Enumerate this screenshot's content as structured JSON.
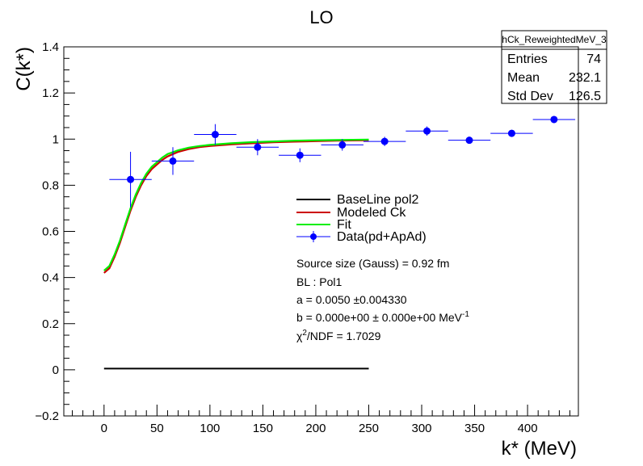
{
  "chart_data": {
    "type": "scatter",
    "title": "LO",
    "xlabel": "k* (MeV)",
    "ylabel": "C(k*)",
    "xlim": [
      -38,
      448
    ],
    "ylim": [
      -0.2,
      1.4
    ],
    "x_ticks": [
      0,
      50,
      100,
      150,
      200,
      250,
      300,
      350,
      400
    ],
    "x_tick_labels": [
      "0",
      "50",
      "100",
      "150",
      "200",
      "250",
      "300",
      "350",
      "400"
    ],
    "y_ticks": [
      -0.2,
      0,
      0.2,
      0.4,
      0.6,
      0.8,
      1,
      1.2,
      1.4
    ],
    "y_tick_labels": [
      "−0.2",
      "0",
      "0.2",
      "0.4",
      "0.6",
      "0.8",
      "1",
      "1.2",
      "1.4"
    ],
    "grid": false,
    "legend_position": "center",
    "stats_box": {
      "name": "hCk_ReweightedMeV_3",
      "rows": [
        {
          "label": "Entries",
          "value": "74"
        },
        {
          "label": "Mean",
          "value": "232.1"
        },
        {
          "label": "Std Dev",
          "value": "126.5"
        }
      ]
    },
    "series": [
      {
        "name": "BaseLine pol2",
        "kind": "line",
        "color": "#000000",
        "x": [
          0,
          250
        ],
        "y": [
          0.005,
          0.005
        ]
      },
      {
        "name": "Modeled Ck",
        "kind": "line",
        "color": "#cc0000",
        "x": [
          0,
          5,
          10,
          15,
          20,
          25,
          30,
          35,
          40,
          45,
          50,
          55,
          60,
          70,
          80,
          90,
          100,
          120,
          140,
          160,
          180,
          200,
          220,
          250
        ],
        "y": [
          0.42,
          0.44,
          0.49,
          0.55,
          0.62,
          0.69,
          0.75,
          0.8,
          0.84,
          0.87,
          0.89,
          0.91,
          0.925,
          0.945,
          0.957,
          0.965,
          0.97,
          0.977,
          0.982,
          0.986,
          0.989,
          0.991,
          0.993,
          0.995
        ]
      },
      {
        "name": "Fit",
        "kind": "line",
        "color": "#00ee00",
        "x": [
          0,
          5,
          10,
          15,
          20,
          25,
          30,
          35,
          40,
          45,
          50,
          55,
          60,
          70,
          80,
          90,
          100,
          120,
          140,
          160,
          180,
          200,
          220,
          250
        ],
        "y": [
          0.43,
          0.45,
          0.5,
          0.56,
          0.63,
          0.7,
          0.76,
          0.81,
          0.85,
          0.88,
          0.9,
          0.92,
          0.935,
          0.952,
          0.963,
          0.97,
          0.975,
          0.982,
          0.987,
          0.99,
          0.993,
          0.995,
          0.996,
          0.998
        ]
      },
      {
        "name": "Data(pd+ApAd)",
        "kind": "points",
        "color": "#0000ff",
        "x": [
          25,
          65,
          105,
          145,
          185,
          225,
          265,
          305,
          345,
          385,
          425
        ],
        "y": [
          0.825,
          0.905,
          1.02,
          0.965,
          0.93,
          0.975,
          0.99,
          1.035,
          0.995,
          1.025,
          1.085
        ],
        "xerr": [
          20,
          20,
          20,
          20,
          20,
          20,
          20,
          20,
          20,
          20,
          20
        ],
        "yerr": [
          0.12,
          0.06,
          0.045,
          0.035,
          0.03,
          0.025,
          0.02,
          0.02,
          0.015,
          0.015,
          0.015
        ]
      }
    ],
    "annotations": [
      "Source size (Gauss) = 0.92 fm",
      "BL : Pol1",
      "a =  0.0050 ±0.004330",
      "b =  0.000e+00 ± 0.000e+00 MeV",
      "χ",
      "/NDF =  1.7029"
    ],
    "annotation_superscripts": [
      "-1",
      "2"
    ]
  }
}
